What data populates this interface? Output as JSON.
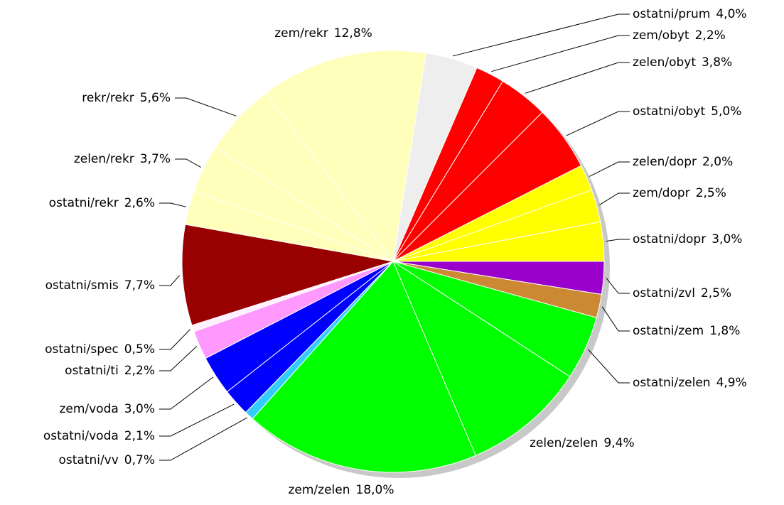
{
  "chart_data": {
    "type": "pie",
    "categories": [
      "ostatni/prum",
      "zem/obyt",
      "zelen/obyt",
      "ostatni/obyt",
      "zelen/dopr",
      "zem/dopr",
      "ostatni/dopr",
      "ostatni/zvl",
      "ostatni/zem",
      "ostatni/zelen",
      "zelen/zelen",
      "zem/zelen",
      "ostatni/vv",
      "ostatni/voda",
      "zem/voda",
      "ostatni/ti",
      "ostatni/spec",
      "ostatni/smis",
      "ostatni/rekr",
      "zelen/rekr",
      "rekr/rekr",
      "zem/rekr"
    ],
    "values": [
      4.0,
      2.2,
      3.8,
      5.0,
      2.0,
      2.5,
      3.0,
      2.5,
      1.8,
      4.9,
      9.4,
      18.0,
      0.7,
      2.1,
      3.0,
      2.2,
      0.5,
      7.7,
      2.6,
      3.7,
      5.6,
      12.8
    ],
    "value_labels": [
      "4,0%",
      "2,2%",
      "3,8%",
      "5,0%",
      "2,0%",
      "2,5%",
      "3,0%",
      "2,5%",
      "1,8%",
      "4,9%",
      "9,4%",
      "18,0%",
      "0,7%",
      "2,1%",
      "3,0%",
      "2,2%",
      "0,5%",
      "7,7%",
      "2,6%",
      "3,7%",
      "5,6%",
      "12,8%"
    ],
    "colors": [
      "#eeeeee",
      "#ff0000",
      "#ff0000",
      "#ff0000",
      "#ffff00",
      "#ffff00",
      "#ffff00",
      "#9900cc",
      "#cc8833",
      "#00ff00",
      "#00ff00",
      "#00ff00",
      "#33ccff",
      "#0000ff",
      "#0000ff",
      "#ff99ff",
      "#fff0ff",
      "#990000",
      "#ffffbb",
      "#ffffbb",
      "#ffffbb",
      "#ffffbb"
    ]
  }
}
